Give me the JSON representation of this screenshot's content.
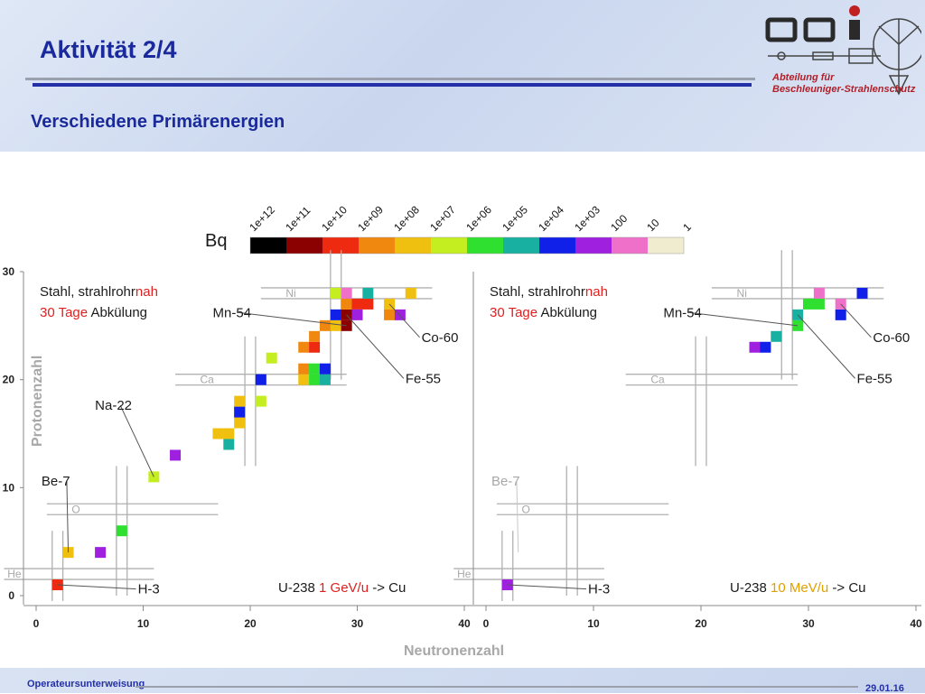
{
  "header": {
    "title": "Aktivität 2/4",
    "subtitle": "Verschiedene Primärenergien",
    "department_line1": "Abteilung für",
    "department_line2": "Beschleuniger-Strahlenschutz"
  },
  "footer": {
    "left": "Operateursunterweisung",
    "right": "29.01.16"
  },
  "colors": {
    "title": "#1a2a9c",
    "accent_red": "#e02020",
    "accent_orange": "#e0a000"
  },
  "chart_data": {
    "type": "heatmap",
    "colorbar": {
      "unit": "Bq",
      "ticks": [
        "1e+12",
        "1e+11",
        "1e+10",
        "1e+09",
        "1e+08",
        "1e+07",
        "1e+06",
        "1e+05",
        "1e+04",
        "1e+03",
        "100",
        "10",
        "1"
      ],
      "colors": [
        "#000000",
        "#8b0000",
        "#ee2a10",
        "#f08810",
        "#f0c010",
        "#c4ee20",
        "#30e030",
        "#18b0a0",
        "#1020e8",
        "#a020e0",
        "#ee70c8",
        "#f0ecd0"
      ]
    },
    "xlabel": "Neutronenzahl",
    "ylabel": "Protonenzahl",
    "xlim": [
      0,
      40
    ],
    "ylim": [
      0,
      30
    ],
    "x_ticks": [
      0,
      10,
      20,
      30,
      40
    ],
    "y_ticks": [
      0,
      10,
      20,
      30
    ],
    "panels": [
      {
        "sample_line1": "Stahl, strahlrohr",
        "sample_nah": "nah",
        "cooling_time": "30 Tage",
        "cooling_word": "Abkülung",
        "beam_ion": "U-238",
        "beam_energy": "1 GeV/u",
        "beam_target": "-> Cu",
        "energy_color": "#e02020",
        "elements": [
          {
            "label": "He",
            "z": 2
          },
          {
            "label": "O",
            "z": 8
          },
          {
            "label": "Ca",
            "z": 20
          },
          {
            "label": "Ni",
            "z": 28
          }
        ],
        "isotopes": [
          {
            "name": "H-3",
            "n": 2,
            "z": 1,
            "lx": 9.5,
            "ly": 0.2
          },
          {
            "name": "Be-7",
            "n": 3,
            "z": 4,
            "lx": 0.5,
            "ly": 10.2
          },
          {
            "name": "Na-22",
            "n": 11,
            "z": 11,
            "lx": 5.5,
            "ly": 17.2
          },
          {
            "name": "Mn-54",
            "n": 29,
            "z": 25,
            "lx": 16.5,
            "ly": 25.8
          },
          {
            "name": "Fe-55",
            "n": 29,
            "z": 26,
            "lx": 34.5,
            "ly": 19.7
          },
          {
            "name": "Co-60",
            "n": 33,
            "z": 27,
            "lx": 36,
            "ly": 23.5
          }
        ],
        "points": [
          {
            "n": 2,
            "z": 1,
            "v": 10.0
          },
          {
            "n": 3,
            "z": 4,
            "v": 8.0
          },
          {
            "n": 6,
            "z": 4,
            "v": 3.0
          },
          {
            "n": 8,
            "z": 6,
            "v": 6.0
          },
          {
            "n": 11,
            "z": 11,
            "v": 7.0
          },
          {
            "n": 13,
            "z": 13,
            "v": 3.0
          },
          {
            "n": 17,
            "z": 15,
            "v": 8.0
          },
          {
            "n": 18,
            "z": 15,
            "v": 8.0
          },
          {
            "n": 18,
            "z": 14,
            "v": 5.0
          },
          {
            "n": 19,
            "z": 16,
            "v": 8.0
          },
          {
            "n": 19,
            "z": 17,
            "v": 4.0
          },
          {
            "n": 19,
            "z": 18,
            "v": 8.0
          },
          {
            "n": 21,
            "z": 18,
            "v": 7.0
          },
          {
            "n": 21,
            "z": 20,
            "v": 4.0
          },
          {
            "n": 22,
            "z": 22,
            "v": 7.0
          },
          {
            "n": 25,
            "z": 20,
            "v": 8.0
          },
          {
            "n": 26,
            "z": 20,
            "v": 6.0
          },
          {
            "n": 27,
            "z": 20,
            "v": 5.0
          },
          {
            "n": 25,
            "z": 21,
            "v": 9.0
          },
          {
            "n": 26,
            "z": 21,
            "v": 6.0
          },
          {
            "n": 27,
            "z": 21,
            "v": 4.0
          },
          {
            "n": 25,
            "z": 23,
            "v": 9.0
          },
          {
            "n": 26,
            "z": 23,
            "v": 10.0
          },
          {
            "n": 26,
            "z": 24,
            "v": 9.0
          },
          {
            "n": 27,
            "z": 25,
            "v": 9.0
          },
          {
            "n": 28,
            "z": 25,
            "v": 8.0
          },
          {
            "n": 28,
            "z": 26,
            "v": 4.0
          },
          {
            "n": 29,
            "z": 25,
            "v": 11.0
          },
          {
            "n": 29,
            "z": 26,
            "v": 11.0
          },
          {
            "n": 29,
            "z": 27,
            "v": 9.0
          },
          {
            "n": 30,
            "z": 27,
            "v": 10.0
          },
          {
            "n": 31,
            "z": 27,
            "v": 10.0
          },
          {
            "n": 30,
            "z": 26,
            "v": 3.0
          },
          {
            "n": 28,
            "z": 28,
            "v": 7.0
          },
          {
            "n": 29,
            "z": 28,
            "v": 2.0
          },
          {
            "n": 31,
            "z": 28,
            "v": 5.0
          },
          {
            "n": 33,
            "z": 27,
            "v": 8.0
          },
          {
            "n": 33,
            "z": 26,
            "v": 9.0
          },
          {
            "n": 34,
            "z": 26,
            "v": 3.0
          },
          {
            "n": 35,
            "z": 28,
            "v": 8.0
          }
        ]
      },
      {
        "sample_line1": "Stahl, strahlrohr",
        "sample_nah": "nah",
        "cooling_time": "30 Tage",
        "cooling_word": "Abkülung",
        "beam_ion": "U-238",
        "beam_energy": "10 MeV/u",
        "beam_target": "-> Cu",
        "energy_color": "#e0a000",
        "elements": [
          {
            "label": "He",
            "z": 2
          },
          {
            "label": "O",
            "z": 8
          },
          {
            "label": "Ca",
            "z": 20
          },
          {
            "label": "Ni",
            "z": 28
          }
        ],
        "isotopes": [
          {
            "name": "H-3",
            "n": 2,
            "z": 1,
            "lx": 9.5,
            "ly": 0.2
          },
          {
            "name": "Be-7",
            "n": 3,
            "z": 4,
            "lx": 0.5,
            "ly": 10.2,
            "faded": true
          },
          {
            "name": "Mn-54",
            "n": 29,
            "z": 25,
            "lx": 16.5,
            "ly": 25.8
          },
          {
            "name": "Fe-55",
            "n": 29,
            "z": 26,
            "lx": 34.5,
            "ly": 19.7
          },
          {
            "name": "Co-60",
            "n": 33,
            "z": 27,
            "lx": 36,
            "ly": 23.5
          }
        ],
        "points": [
          {
            "n": 2,
            "z": 1,
            "v": 3.0
          },
          {
            "n": 25,
            "z": 23,
            "v": 3.0
          },
          {
            "n": 26,
            "z": 23,
            "v": 4.0
          },
          {
            "n": 27,
            "z": 24,
            "v": 5.0
          },
          {
            "n": 29,
            "z": 25,
            "v": 6.0
          },
          {
            "n": 29,
            "z": 26,
            "v": 5.0
          },
          {
            "n": 30,
            "z": 27,
            "v": 6.0
          },
          {
            "n": 31,
            "z": 27,
            "v": 6.0
          },
          {
            "n": 31,
            "z": 28,
            "v": 2.0
          },
          {
            "n": 33,
            "z": 26,
            "v": 4.0
          },
          {
            "n": 33,
            "z": 27,
            "v": 2.0
          },
          {
            "n": 35,
            "z": 28,
            "v": 4.0
          }
        ]
      }
    ]
  }
}
